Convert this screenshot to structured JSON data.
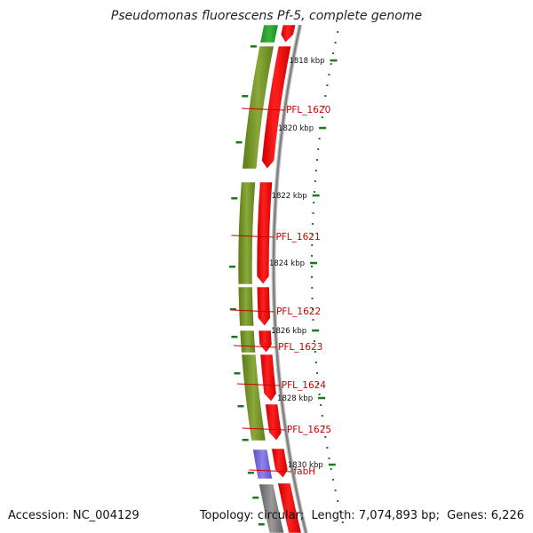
{
  "title": "Pseudomonas fluorescens Pf-5, complete genome",
  "footer": {
    "accession_label": "Accession:",
    "accession": "NC_004129",
    "topology_label": "Topology:",
    "topology": "circular;",
    "length_label": "Length:",
    "length": "7,074,893 bp;",
    "genes_label": "Genes:",
    "genes": "6,226"
  },
  "colors": {
    "forward_cds": "#ee1111",
    "cog_olive": "#6b8c23",
    "cog_green": "#2e9d32",
    "cog_purple": "#7b68d8",
    "cog_gray": "#7a7a7a",
    "backbone": "#808080",
    "tick": "#1b7a1b",
    "label": "#cc0000"
  },
  "ticks": [
    {
      "label": "1818 kbp"
    },
    {
      "label": "1820 kbp"
    },
    {
      "label": "1822 kbp"
    },
    {
      "label": "1824 kbp"
    },
    {
      "label": "1826 kbp"
    },
    {
      "label": "1828 kbp"
    },
    {
      "label": "1830 kbp"
    }
  ],
  "genes": [
    {
      "label": ""
    },
    {
      "label": "PFL_1620"
    },
    {
      "label": "PFL_1621"
    },
    {
      "label": "PFL_1622"
    },
    {
      "label": "PFL_1623"
    },
    {
      "label": "PFL_1624"
    },
    {
      "label": "PFL_1625"
    },
    {
      "label": "fabH"
    },
    {
      "label": ""
    }
  ]
}
